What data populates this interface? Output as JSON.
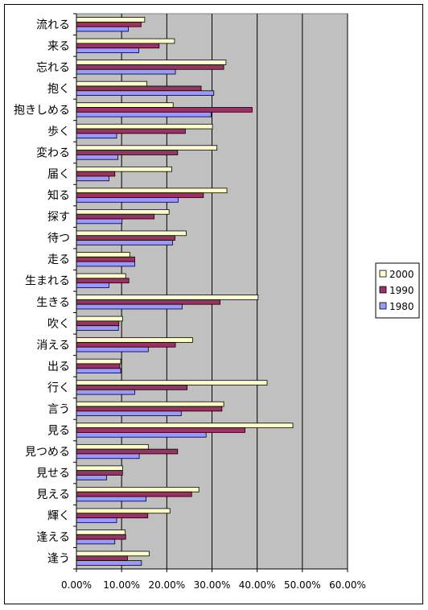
{
  "chart_data": {
    "type": "bar",
    "orientation": "horizontal",
    "title": "",
    "xlabel": "",
    "ylabel": "",
    "xlim": [
      0,
      0.6
    ],
    "grid": true,
    "legend_position": "right",
    "x_tick_labels": [
      "0.00%",
      "10.00%",
      "20.00%",
      "30.00%",
      "40.00%",
      "50.00%",
      "60.00%"
    ],
    "categories": [
      "流れる",
      "来る",
      "忘れる",
      "抱く",
      "抱きしめる",
      "歩く",
      "変わる",
      "届く",
      "知る",
      "探す",
      "待つ",
      "走る",
      "生まれる",
      "生きる",
      "吹く",
      "消える",
      "出る",
      "行く",
      "言う",
      "見る",
      "見つめる",
      "見せる",
      "見える",
      "輝く",
      "逢える",
      "逢う"
    ],
    "series": [
      {
        "name": "2000",
        "color": "#ffffcc",
        "values": [
          0.151,
          0.217,
          0.331,
          0.156,
          0.214,
          0.301,
          0.311,
          0.211,
          0.333,
          0.205,
          0.243,
          0.118,
          0.109,
          0.402,
          0.102,
          0.257,
          0.098,
          0.422,
          0.326,
          0.479,
          0.159,
          0.102,
          0.271,
          0.207,
          0.108,
          0.161
        ]
      },
      {
        "name": "1990",
        "color": "#993366",
        "values": [
          0.143,
          0.183,
          0.326,
          0.276,
          0.389,
          0.241,
          0.224,
          0.085,
          0.281,
          0.172,
          0.218,
          0.129,
          0.116,
          0.318,
          0.094,
          0.219,
          0.096,
          0.245,
          0.322,
          0.373,
          0.224,
          0.102,
          0.255,
          0.158,
          0.109,
          0.113
        ]
      },
      {
        "name": "1980",
        "color": "#9999ff",
        "values": [
          0.115,
          0.138,
          0.219,
          0.304,
          0.298,
          0.089,
          0.092,
          0.072,
          0.225,
          0.101,
          0.213,
          0.129,
          0.072,
          0.234,
          0.093,
          0.159,
          0.098,
          0.129,
          0.232,
          0.287,
          0.139,
          0.067,
          0.154,
          0.089,
          0.085,
          0.144
        ]
      }
    ]
  }
}
